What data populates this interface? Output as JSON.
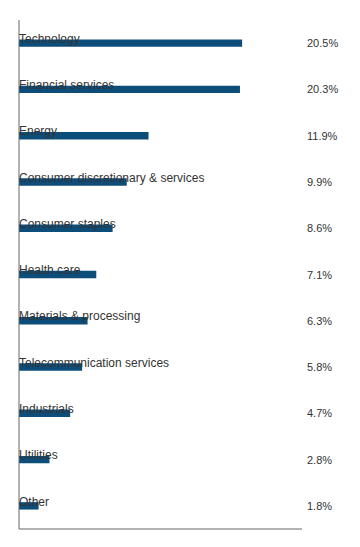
{
  "chart_data": {
    "type": "bar",
    "orientation": "horizontal",
    "categories": [
      "Technology",
      "Financial services",
      "Energy",
      "Consumer discretionary & services",
      "Consumer staples",
      "Health care",
      "Materials & processing",
      "Telecommunication services",
      "Industrials",
      "Utilities",
      "Other"
    ],
    "values": [
      20.5,
      20.3,
      11.9,
      9.9,
      8.6,
      7.1,
      6.3,
      5.8,
      4.7,
      2.8,
      1.8
    ],
    "value_labels": [
      "20.5%",
      "20.3%",
      "11.9%",
      "9.9%",
      "8.6%",
      "7.1%",
      "6.3%",
      "5.8%",
      "4.7%",
      "2.8%",
      "1.8%"
    ],
    "color": "#0d4d7a",
    "xlim": [
      0,
      26
    ],
    "data_labels": true,
    "tick_labels": false
  }
}
